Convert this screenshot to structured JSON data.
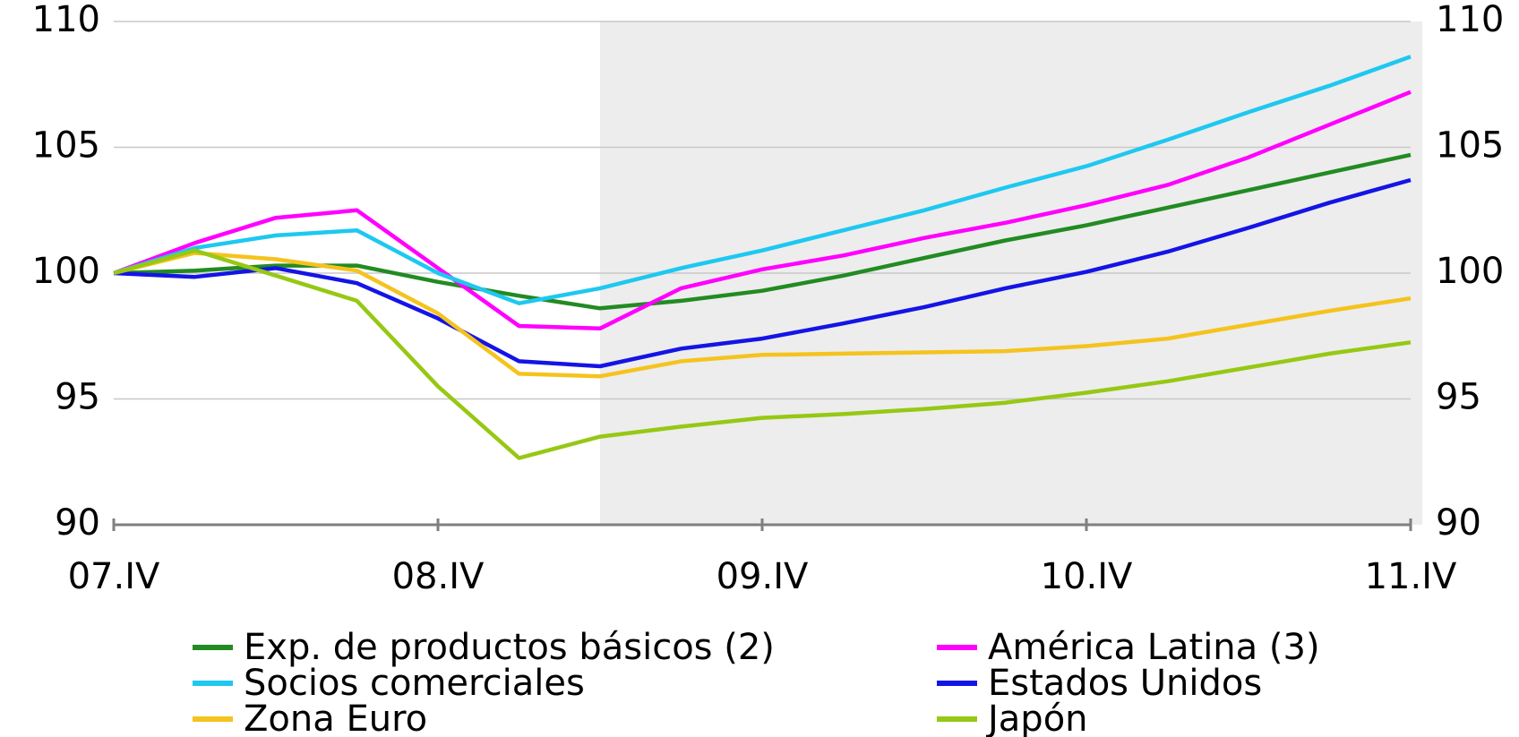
{
  "chart_data": {
    "type": "line",
    "categories": [
      "07.IV",
      null,
      null,
      null,
      "08.IV",
      null,
      null,
      null,
      "09.IV",
      null,
      null,
      null,
      "10.IV",
      null,
      null,
      null,
      "11.IV"
    ],
    "series": [
      {
        "name": "Exp. de productos básicos (2)",
        "color": "#228b22",
        "values": [
          100,
          100.1,
          100.3,
          100.3,
          99.65,
          99.1,
          98.6,
          98.9,
          99.3,
          99.9,
          100.6,
          101.3,
          101.9,
          102.6,
          103.3,
          104.0,
          104.7
        ]
      },
      {
        "name": "América Latina (3)",
        "color": "#ff00ff",
        "values": [
          100,
          101.2,
          102.2,
          102.5,
          100.2,
          97.9,
          97.8,
          99.4,
          100.15,
          100.7,
          101.4,
          102.0,
          102.7,
          103.5,
          104.6,
          105.9,
          107.2
        ]
      },
      {
        "name": "Socios comerciales",
        "color": "#1ec8f0",
        "values": [
          100,
          101.0,
          101.5,
          101.7,
          100.0,
          98.8,
          99.4,
          100.2,
          100.9,
          101.7,
          102.5,
          103.4,
          104.25,
          105.3,
          106.4,
          107.45,
          108.6
        ]
      },
      {
        "name": "Estados Unidos",
        "color": "#1414e6",
        "values": [
          100,
          99.85,
          100.2,
          99.6,
          98.2,
          96.5,
          96.3,
          97.0,
          97.4,
          98.0,
          98.65,
          99.4,
          100.05,
          100.85,
          101.8,
          102.8,
          103.7
        ]
      },
      {
        "name": "Zona Euro",
        "color": "#f5c31e",
        "values": [
          100,
          100.8,
          100.55,
          100.1,
          98.4,
          96.0,
          95.9,
          96.5,
          96.75,
          96.8,
          96.85,
          96.9,
          97.1,
          97.4,
          97.95,
          98.5,
          99.0
        ]
      },
      {
        "name": "Japón",
        "color": "#96c814",
        "values": [
          100,
          100.9,
          99.9,
          98.9,
          95.5,
          92.65,
          93.5,
          93.9,
          94.25,
          94.4,
          94.6,
          94.85,
          95.25,
          95.7,
          96.25,
          96.8,
          97.25
        ]
      }
    ],
    "ylim": [
      90,
      110
    ],
    "yticks": [
      90,
      95,
      100,
      105,
      110
    ],
    "y2lim": [
      90,
      110
    ],
    "y2ticks": [
      90,
      95,
      100,
      105,
      110
    ],
    "grid": true,
    "shaded_from_index": 6,
    "shade_color": "#ededed"
  }
}
